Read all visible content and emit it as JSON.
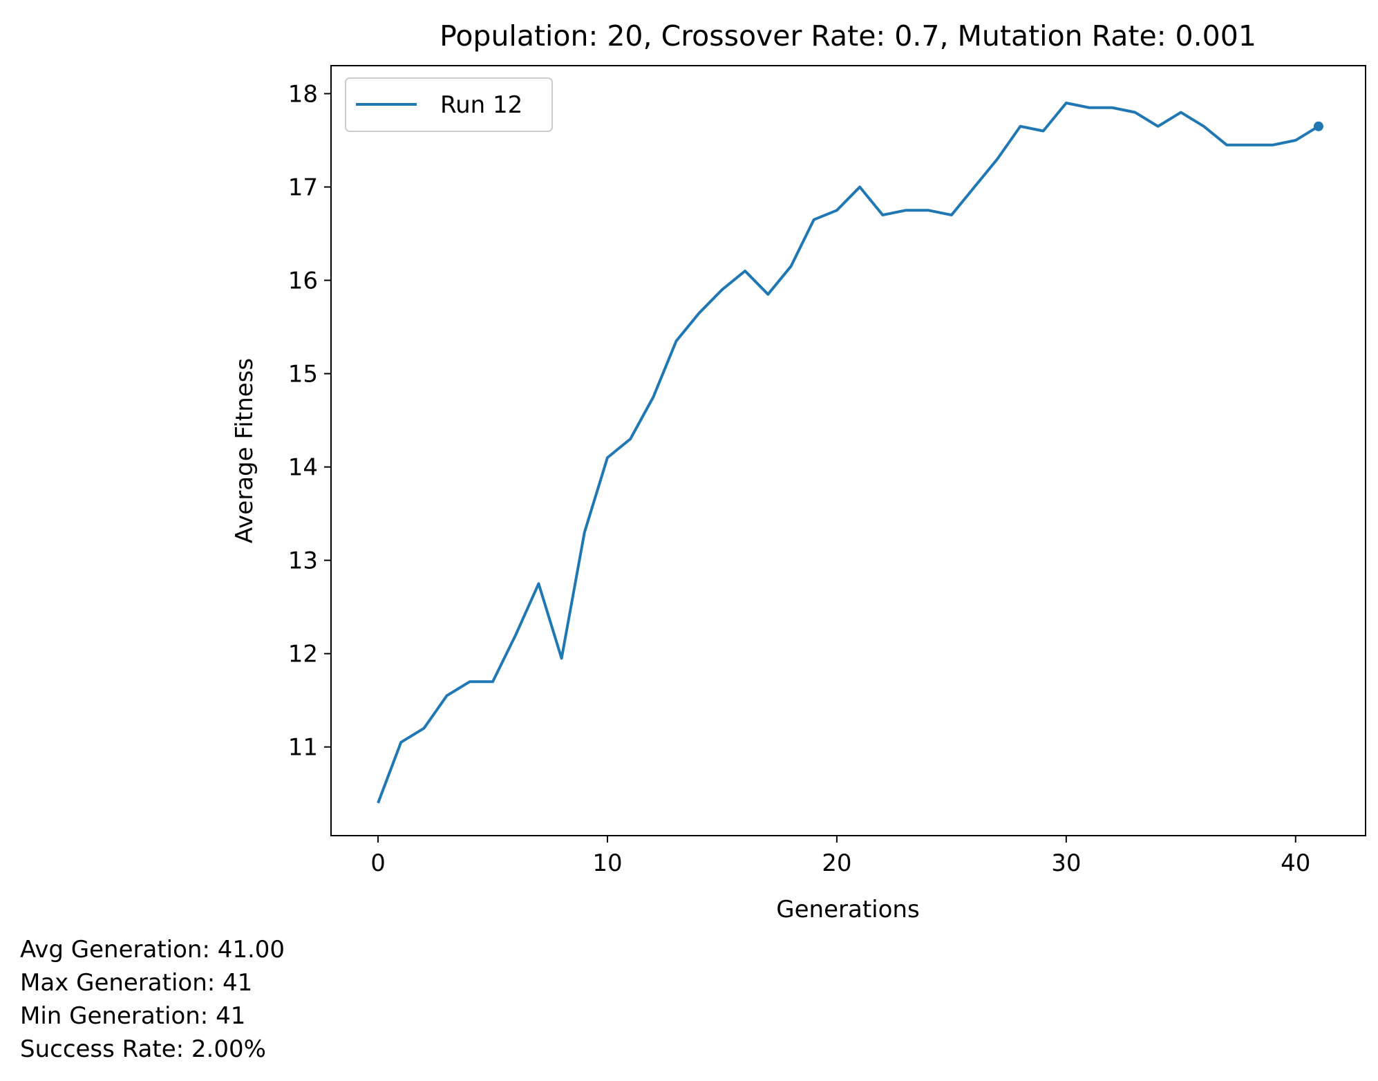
{
  "chart_data": {
    "type": "line",
    "title": "Population: 20, Crossover Rate: 0.7, Mutation Rate: 0.001",
    "xlabel": "Generations",
    "ylabel": "Average Fitness",
    "xlim": [
      -2.05,
      43.05
    ],
    "ylim": [
      10.05,
      18.3
    ],
    "xticks": [
      0,
      10,
      20,
      30,
      40
    ],
    "yticks": [
      11,
      12,
      13,
      14,
      15,
      16,
      17,
      18
    ],
    "grid": false,
    "legend_position": "upper-left",
    "series": [
      {
        "name": "Run 12",
        "color": "#1f77b4",
        "end_marker": true,
        "x": [
          0,
          1,
          2,
          3,
          4,
          5,
          6,
          7,
          8,
          9,
          10,
          11,
          12,
          13,
          14,
          15,
          16,
          17,
          18,
          19,
          20,
          21,
          22,
          23,
          24,
          25,
          26,
          27,
          28,
          29,
          30,
          31,
          32,
          33,
          34,
          35,
          36,
          37,
          38,
          39,
          40,
          41
        ],
        "y": [
          10.4,
          11.05,
          11.2,
          11.55,
          11.7,
          11.7,
          12.2,
          12.75,
          11.95,
          13.3,
          14.1,
          14.3,
          14.75,
          15.35,
          15.65,
          15.9,
          16.1,
          15.85,
          16.15,
          16.65,
          16.75,
          17.0,
          16.7,
          16.75,
          16.75,
          16.7,
          17.0,
          17.3,
          17.65,
          17.6,
          17.9,
          17.85,
          17.85,
          17.8,
          17.65,
          17.8,
          17.65,
          17.45,
          17.45,
          17.45,
          17.5,
          17.65
        ]
      }
    ]
  },
  "stats": {
    "avg_generation": "Avg Generation: 41.00",
    "max_generation": "Max Generation: 41",
    "min_generation": "Min Generation: 41",
    "success_rate": "Success Rate: 2.00%"
  }
}
